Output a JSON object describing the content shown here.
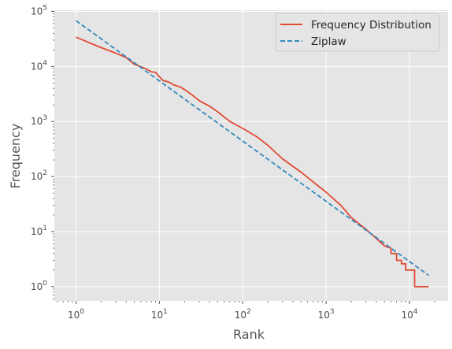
{
  "chart_data": {
    "type": "line",
    "title": "",
    "xlabel": "Rank",
    "ylabel": "Frequency",
    "xscale": "log",
    "yscale": "log",
    "xlim": [
      0.55,
      29000
    ],
    "ylim": [
      0.55,
      105000
    ],
    "grid": true,
    "legend_position": "top-right",
    "x_ticks": [
      {
        "value": 1,
        "base": "10",
        "exp": "0"
      },
      {
        "value": 10,
        "base": "10",
        "exp": "1"
      },
      {
        "value": 100,
        "base": "10",
        "exp": "2"
      },
      {
        "value": 1000,
        "base": "10",
        "exp": "3"
      },
      {
        "value": 10000,
        "base": "10",
        "exp": "4"
      }
    ],
    "y_ticks": [
      {
        "value": 1,
        "base": "10",
        "exp": "0"
      },
      {
        "value": 10,
        "base": "10",
        "exp": "1"
      },
      {
        "value": 100,
        "base": "10",
        "exp": "2"
      },
      {
        "value": 1000,
        "base": "10",
        "exp": "3"
      },
      {
        "value": 10000,
        "base": "10",
        "exp": "4"
      },
      {
        "value": 100000,
        "base": "10",
        "exp": "5"
      }
    ],
    "series": [
      {
        "name": "Frequency Distribution",
        "color": "#e24a33",
        "style": "solid",
        "x": [
          1,
          2,
          3,
          4,
          5,
          7,
          8,
          9,
          10,
          11,
          13,
          15,
          18,
          20,
          25,
          30,
          40,
          50,
          70,
          100,
          150,
          200,
          300,
          500,
          700,
          1000,
          1500,
          2000,
          3000,
          4000,
          5000,
          6000,
          6000,
          7000,
          7000,
          8000,
          8000,
          9000,
          9000,
          11500,
          11500,
          17000
        ],
        "y": [
          34000,
          22000,
          17500,
          14500,
          11000,
          9000,
          8000,
          7800,
          6500,
          5600,
          5200,
          4600,
          4200,
          3800,
          3000,
          2400,
          1900,
          1500,
          1000,
          750,
          520,
          370,
          210,
          120,
          80,
          52,
          30,
          18,
          11,
          7.5,
          5.5,
          5.0,
          4.0,
          4.0,
          3.0,
          3.0,
          2.6,
          2.6,
          2.0,
          2.0,
          1.0,
          1.0
        ]
      },
      {
        "name": "Ziplaw",
        "color": "#348abd",
        "style": "dashed",
        "x": [
          1,
          17000
        ],
        "y": [
          68000,
          1.6
        ]
      }
    ]
  }
}
